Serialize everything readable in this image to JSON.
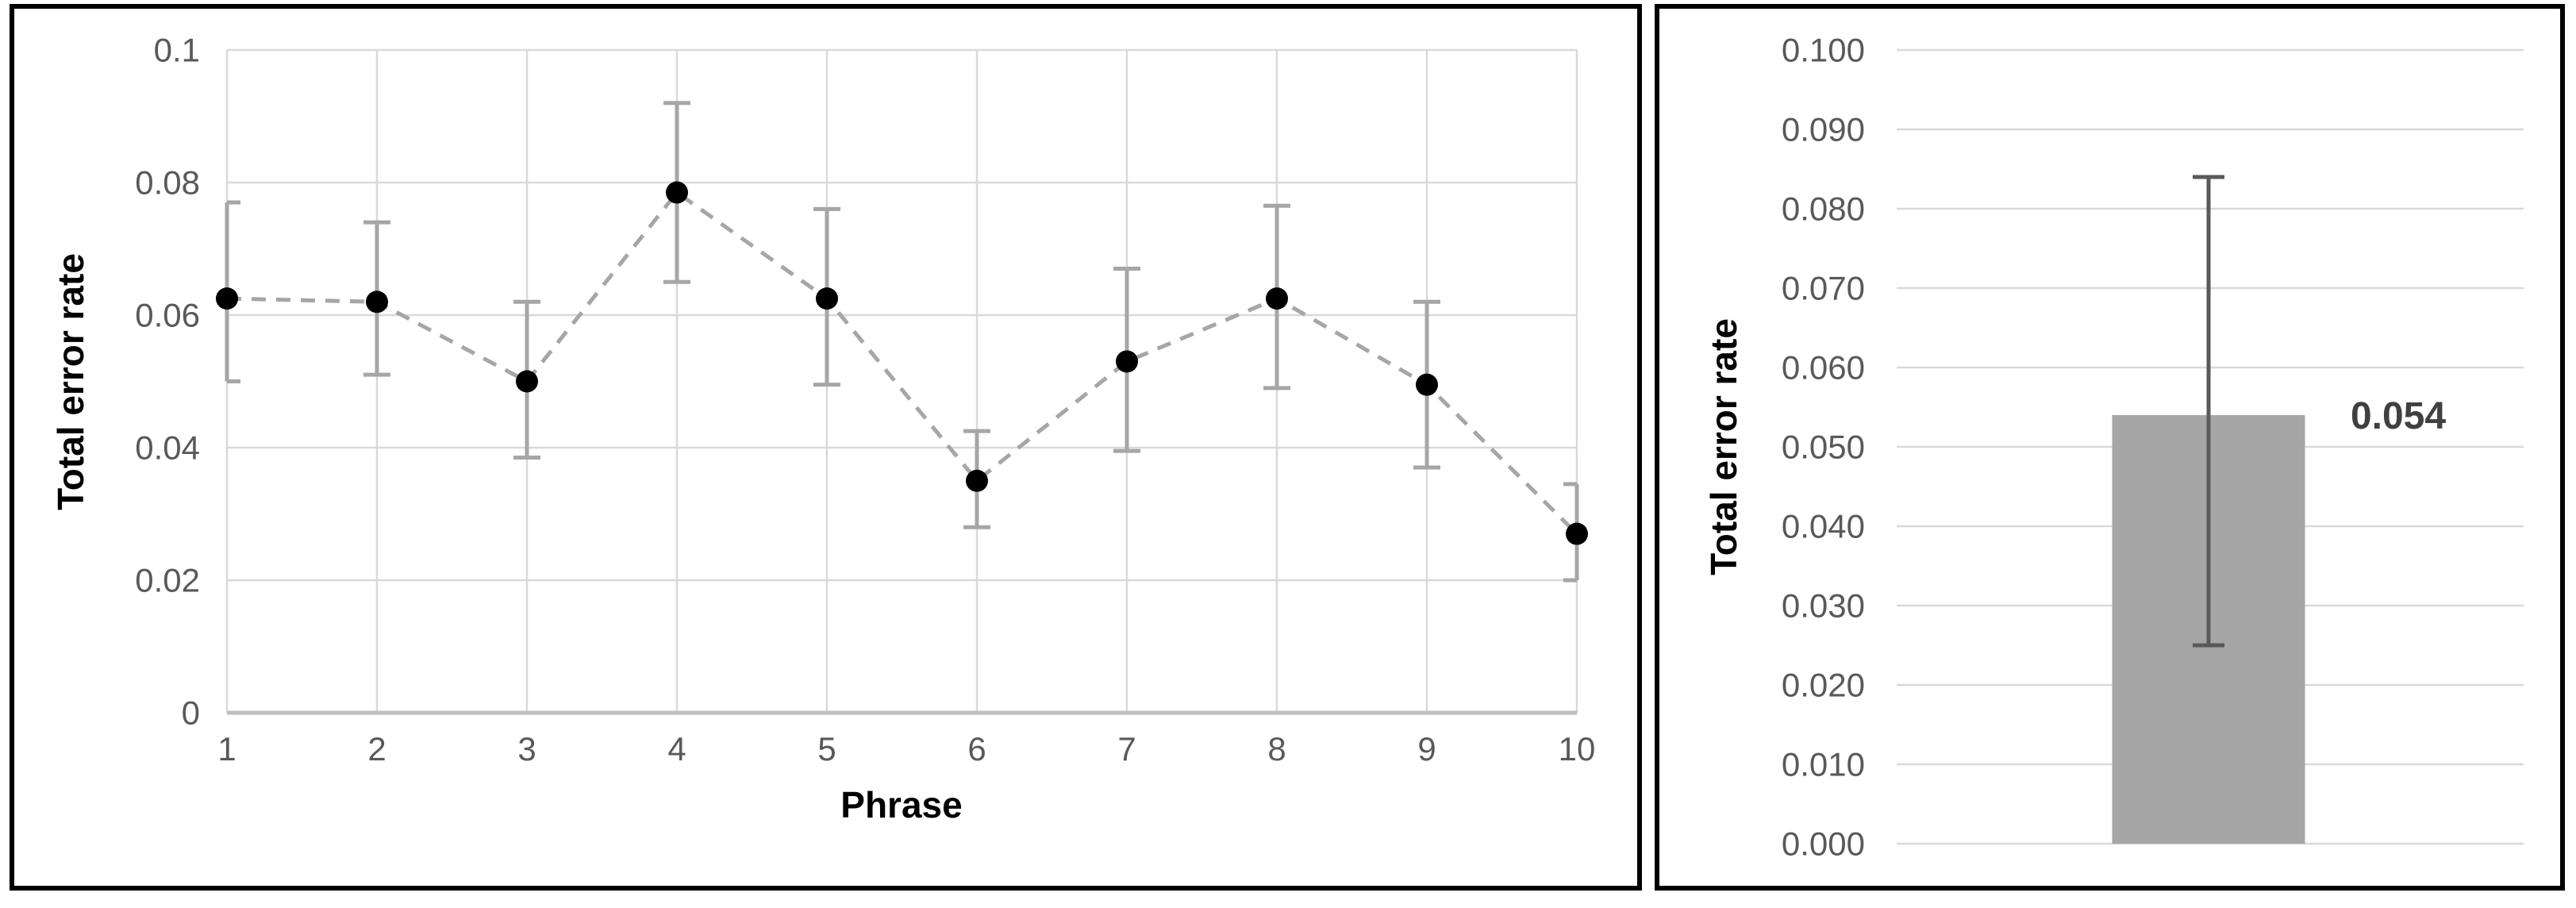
{
  "figure": {
    "background": "#ffffff",
    "panel_border_color": "#000000"
  },
  "colors": {
    "gridline": "#d9d9d9",
    "axis_line": "#bfbfbf",
    "series_line": "#a6a6a6",
    "marker": "#000000",
    "error_bar_left": "#a6a6a6",
    "bar_fill": "#a6a6a6",
    "error_bar_right": "#595959",
    "tick_text": "#595959",
    "title_text": "#000000",
    "data_label_text": "#404040"
  },
  "chart_data": [
    {
      "type": "line",
      "title": "",
      "xlabel": "Phrase",
      "ylabel": "Total error rate",
      "line_style": "dashed",
      "marker": "filled-circle",
      "grid": true,
      "legend": "none",
      "x": [
        1,
        2,
        3,
        4,
        5,
        6,
        7,
        8,
        9,
        10
      ],
      "xtick_labels": [
        "1",
        "2",
        "3",
        "4",
        "5",
        "6",
        "7",
        "8",
        "9",
        "10"
      ],
      "values": [
        0.0625,
        0.062,
        0.05,
        0.0785,
        0.0625,
        0.035,
        0.053,
        0.0625,
        0.0495,
        0.027
      ],
      "error_high": [
        0.077,
        0.074,
        0.062,
        0.092,
        0.076,
        0.0425,
        0.067,
        0.0765,
        0.062,
        0.0345
      ],
      "error_low": [
        0.05,
        0.051,
        0.0385,
        0.065,
        0.0495,
        0.028,
        0.0395,
        0.049,
        0.037,
        0.02
      ],
      "ylim": [
        0,
        0.1
      ],
      "ytick_values": [
        0.1,
        0.08,
        0.06,
        0.04,
        0.02,
        0
      ],
      "ytick_labels": [
        "0.1",
        "0.08",
        "0.06",
        "0.04",
        "0.02",
        "0"
      ]
    },
    {
      "type": "bar",
      "title": "",
      "xlabel": "",
      "ylabel": "Total error rate",
      "grid": true,
      "legend": "none",
      "categories": [
        ""
      ],
      "values": [
        0.054
      ],
      "data_labels": [
        "0.054"
      ],
      "error_high": [
        0.084
      ],
      "error_low": [
        0.025
      ],
      "ylim": [
        0,
        0.1
      ],
      "ytick_values": [
        0.1,
        0.09,
        0.08,
        0.07,
        0.06,
        0.05,
        0.04,
        0.03,
        0.02,
        0.01,
        0
      ],
      "ytick_labels": [
        "0.100",
        "0.090",
        "0.080",
        "0.070",
        "0.060",
        "0.050",
        "0.040",
        "0.030",
        "0.020",
        "0.010",
        "0.000"
      ]
    }
  ]
}
